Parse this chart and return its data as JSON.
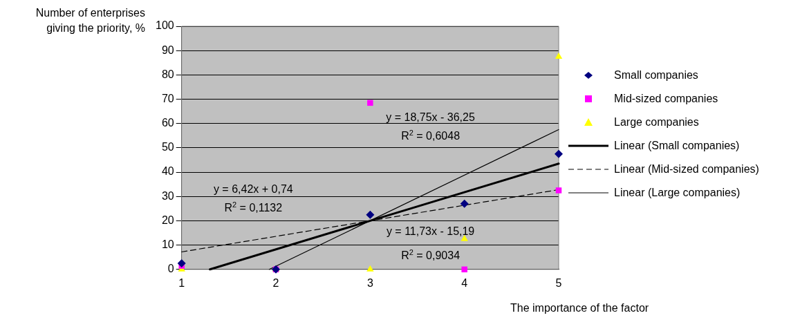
{
  "chart_data": {
    "type": "scatter",
    "xlabel": "The importance of the factor",
    "ylabel": "Number of enterprises giving the priority, %",
    "x": [
      1,
      2,
      3,
      4,
      5
    ],
    "series": [
      {
        "name": "Small companies",
        "color": "#000080",
        "marker": "diamond",
        "values": [
          2.5,
          0,
          22.5,
          27,
          47.5
        ]
      },
      {
        "name": "Mid-sized companies",
        "color": "#ff00ff",
        "marker": "square",
        "values": [
          1.5,
          0,
          68.5,
          0,
          32.5
        ]
      },
      {
        "name": "Large companies",
        "color": "#ffff00",
        "marker": "triangle",
        "values": [
          0,
          0,
          0,
          12.5,
          87.5
        ]
      },
      {
        "name": "Linear (Small companies)",
        "type": "line",
        "color": "#000000",
        "line_style": "solid",
        "marker": "none",
        "x": [
          1.3,
          5
        ],
        "values": [
          0,
          43.5
        ]
      },
      {
        "name": "Linear (Mid-sized companies)",
        "type": "line",
        "color": "#000000",
        "line_style": "dashed",
        "marker": "none",
        "x": [
          1,
          5
        ],
        "values": [
          7.2,
          32.8
        ]
      },
      {
        "name": "Linear (Large companies)",
        "type": "line",
        "color": "#000000",
        "line_style": "solid",
        "marker": "none",
        "x": [
          1.93,
          5
        ],
        "values": [
          0,
          57.5
        ]
      }
    ],
    "xlim": [
      1,
      5
    ],
    "xticks": [
      1,
      2,
      3,
      4,
      5
    ],
    "ylim": [
      0,
      100
    ],
    "yticks": [
      0,
      10,
      20,
      30,
      40,
      50,
      60,
      70,
      80,
      90,
      100
    ],
    "grid": "y",
    "legend": "right",
    "annotations": [
      "y = 18,75x - 36,25",
      "R$^{2}$ = 0,6048",
      "y = 6,42x + 0,74",
      "R$^{2}$ = 0,1132",
      "y = 11,73x - 15,19",
      "R$^{2}$ = 0,9034"
    ]
  }
}
